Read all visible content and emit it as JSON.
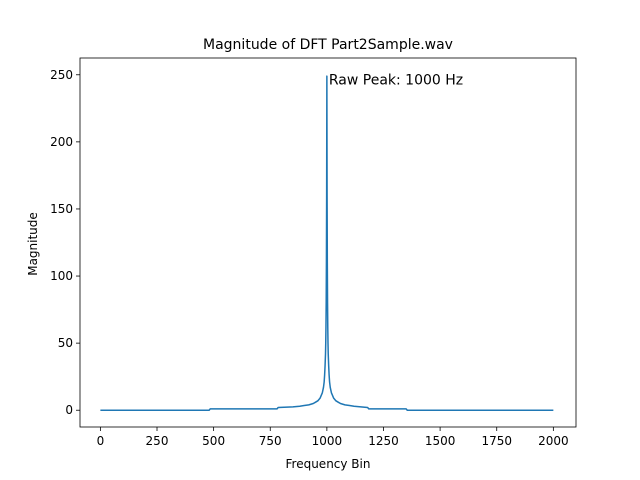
{
  "chart_data": {
    "type": "line",
    "title": "Magnitude of DFT Part2Sample.wav",
    "xlabel": "Frequency Bin",
    "ylabel": "Magnitude",
    "xlim": [
      -90,
      2100
    ],
    "ylim": [
      -12.5,
      262.5
    ],
    "xticks": [
      0,
      250,
      500,
      750,
      1000,
      1250,
      1500,
      1750,
      2000
    ],
    "yticks": [
      0,
      50,
      100,
      150,
      200,
      250
    ],
    "grid": false,
    "annotation": {
      "text": "Raw Peak: 1000 Hz",
      "x": 1000,
      "y": 248
    },
    "series": [
      {
        "color": "#1f77b4",
        "x": [
          0,
          480,
          485,
          780,
          785,
          850,
          880,
          900,
          920,
          940,
          950,
          960,
          970,
          975,
          980,
          985,
          988,
          990,
          992,
          994,
          995,
          996,
          997,
          998,
          999,
          1000,
          1001,
          1002,
          1003,
          1004,
          1005,
          1006,
          1008,
          1010,
          1012,
          1015,
          1020,
          1025,
          1030,
          1040,
          1050,
          1060,
          1080,
          1100,
          1120,
          1150,
          1180,
          1185,
          1350,
          1355,
          2000
        ],
        "y": [
          0,
          0,
          1,
          1,
          2,
          2.5,
          3,
          3.5,
          4,
          5,
          6,
          7,
          9,
          11,
          13,
          17,
          21,
          26,
          33,
          42,
          50,
          62,
          80,
          110,
          160,
          249,
          160,
          110,
          80,
          62,
          50,
          42,
          33,
          26,
          21,
          17,
          13,
          11,
          9,
          7,
          6,
          5,
          4,
          3.5,
          3,
          2.5,
          2,
          1,
          1,
          0,
          0
        ]
      }
    ]
  }
}
